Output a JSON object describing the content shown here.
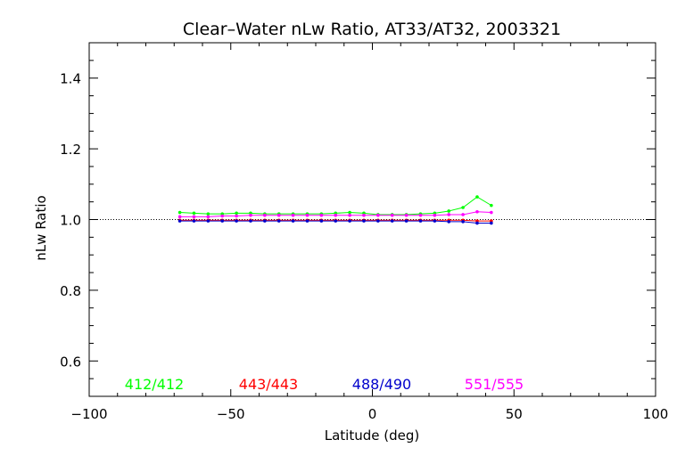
{
  "chart_data": {
    "type": "line",
    "title": "Clear–Water nLw Ratio, AT33/AT32, 2003321",
    "xlabel": "Latitude (deg)",
    "ylabel": "nLw Ratio",
    "xlim": [
      -100,
      100
    ],
    "ylim": [
      0.5,
      1.5
    ],
    "x_ticks": [
      -100,
      -50,
      0,
      50,
      100
    ],
    "x_tick_labels": [
      "−100",
      "−50",
      "0",
      "50",
      "100"
    ],
    "y_ticks": [
      0.6,
      0.8,
      1.0,
      1.2,
      1.4
    ],
    "y_tick_labels": [
      "0.6",
      "0.8",
      "1.0",
      "1.2",
      "1.4"
    ],
    "reference_line": 1.0,
    "grid": false,
    "legend_placement": "bottom-inside",
    "x": [
      -68,
      -63,
      -58,
      -53,
      -48,
      -43,
      -38,
      -33,
      -28,
      -23,
      -18,
      -13,
      -8,
      -3,
      2,
      7,
      12,
      17,
      22,
      27,
      32,
      37,
      42
    ],
    "series": [
      {
        "name": "412/412",
        "color": "#00ff00",
        "values": [
          1.02,
          1.018,
          1.016,
          1.016,
          1.018,
          1.018,
          1.016,
          1.016,
          1.016,
          1.016,
          1.016,
          1.018,
          1.02,
          1.018,
          1.014,
          1.014,
          1.014,
          1.016,
          1.018,
          1.024,
          1.034,
          1.064,
          1.04
        ]
      },
      {
        "name": "443/443",
        "color": "#ff0000",
        "values": [
          0.998,
          0.998,
          0.998,
          0.998,
          0.998,
          0.998,
          0.998,
          0.998,
          0.998,
          0.998,
          0.998,
          0.998,
          0.998,
          0.998,
          0.998,
          0.998,
          0.998,
          0.998,
          0.998,
          0.998,
          0.998,
          0.996,
          0.996
        ]
      },
      {
        "name": "488/490",
        "color": "#0000cc",
        "values": [
          0.996,
          0.996,
          0.996,
          0.996,
          0.996,
          0.996,
          0.996,
          0.996,
          0.996,
          0.996,
          0.996,
          0.996,
          0.996,
          0.996,
          0.996,
          0.996,
          0.996,
          0.996,
          0.996,
          0.994,
          0.994,
          0.99,
          0.99
        ]
      },
      {
        "name": "551/555",
        "color": "#ff00ff",
        "values": [
          1.008,
          1.008,
          1.008,
          1.01,
          1.01,
          1.012,
          1.012,
          1.012,
          1.012,
          1.012,
          1.012,
          1.012,
          1.012,
          1.012,
          1.012,
          1.012,
          1.012,
          1.012,
          1.012,
          1.014,
          1.014,
          1.022,
          1.02
        ]
      }
    ]
  }
}
